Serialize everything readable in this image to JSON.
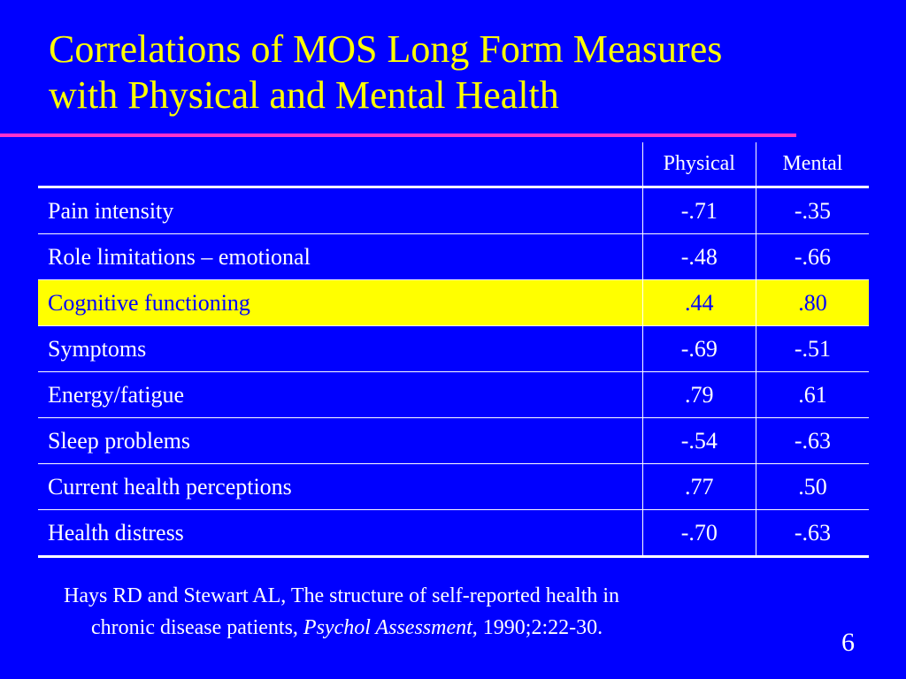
{
  "slide": {
    "title_line1": "Correlations of MOS Long Form Measures",
    "title_line2": "with Physical and Mental Health",
    "page_number": "6"
  },
  "table": {
    "columns": [
      "",
      "Physical",
      "Mental"
    ],
    "rows": [
      {
        "label": "Pain intensity",
        "physical": "-.71",
        "mental": "-.35",
        "highlighted": false
      },
      {
        "label": "Role limitations – emotional",
        "physical": "-.48",
        "mental": "-.66",
        "highlighted": false
      },
      {
        "label": "Cognitive functioning",
        "physical": ".44",
        "mental": ".80",
        "highlighted": true
      },
      {
        "label": "Symptoms",
        "physical": "-.69",
        "mental": "-.51",
        "highlighted": false
      },
      {
        "label": "Energy/fatigue",
        "physical": ".79",
        "mental": ".61",
        "highlighted": false
      },
      {
        "label": "Sleep problems",
        "physical": "-.54",
        "mental": "-.63",
        "highlighted": false
      },
      {
        "label": "Current health perceptions",
        "physical": ".77",
        "mental": ".50",
        "highlighted": false
      },
      {
        "label": "Health distress",
        "physical": "-.70",
        "mental": "-.63",
        "highlighted": false
      }
    ]
  },
  "citation": {
    "line1": "Hays RD and Stewart AL, The structure of self-reported health in",
    "line2_prefix": "chronic disease patients, ",
    "journal": "Psychol Assessment",
    "line2_suffix": ", 1990;2:22-30."
  },
  "colors": {
    "background": "#0000ff",
    "title": "#ffff00",
    "rule": "#ff33cc",
    "highlight_bg": "#ffff00",
    "highlight_text": "#0000ff",
    "text": "#ffffff"
  }
}
